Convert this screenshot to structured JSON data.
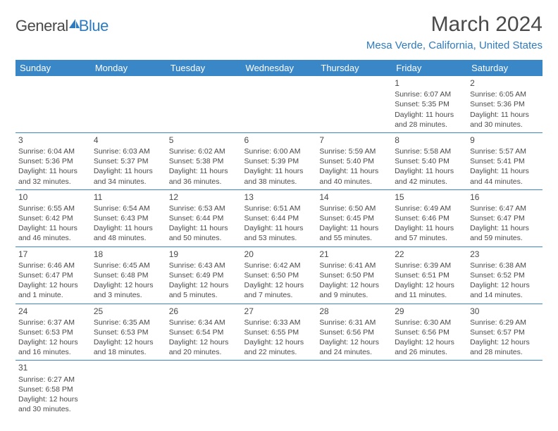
{
  "logo": {
    "general": "General",
    "blue": "Blue"
  },
  "header": {
    "title": "March 2024",
    "location": "Mesa Verde, California, United States"
  },
  "colors": {
    "headerBg": "#3a87c8",
    "headerText": "#ffffff",
    "accent": "#2d7bc0",
    "bodyText": "#4a4a4a",
    "rowBorder": "#3a87c8"
  },
  "weekdays": [
    "Sunday",
    "Monday",
    "Tuesday",
    "Wednesday",
    "Thursday",
    "Friday",
    "Saturday"
  ],
  "days": [
    {
      "n": 1,
      "sunrise": "6:07 AM",
      "sunset": "5:35 PM",
      "daylight": "11 hours and 28 minutes."
    },
    {
      "n": 2,
      "sunrise": "6:05 AM",
      "sunset": "5:36 PM",
      "daylight": "11 hours and 30 minutes."
    },
    {
      "n": 3,
      "sunrise": "6:04 AM",
      "sunset": "5:36 PM",
      "daylight": "11 hours and 32 minutes."
    },
    {
      "n": 4,
      "sunrise": "6:03 AM",
      "sunset": "5:37 PM",
      "daylight": "11 hours and 34 minutes."
    },
    {
      "n": 5,
      "sunrise": "6:02 AM",
      "sunset": "5:38 PM",
      "daylight": "11 hours and 36 minutes."
    },
    {
      "n": 6,
      "sunrise": "6:00 AM",
      "sunset": "5:39 PM",
      "daylight": "11 hours and 38 minutes."
    },
    {
      "n": 7,
      "sunrise": "5:59 AM",
      "sunset": "5:40 PM",
      "daylight": "11 hours and 40 minutes."
    },
    {
      "n": 8,
      "sunrise": "5:58 AM",
      "sunset": "5:40 PM",
      "daylight": "11 hours and 42 minutes."
    },
    {
      "n": 9,
      "sunrise": "5:57 AM",
      "sunset": "5:41 PM",
      "daylight": "11 hours and 44 minutes."
    },
    {
      "n": 10,
      "sunrise": "6:55 AM",
      "sunset": "6:42 PM",
      "daylight": "11 hours and 46 minutes."
    },
    {
      "n": 11,
      "sunrise": "6:54 AM",
      "sunset": "6:43 PM",
      "daylight": "11 hours and 48 minutes."
    },
    {
      "n": 12,
      "sunrise": "6:53 AM",
      "sunset": "6:44 PM",
      "daylight": "11 hours and 50 minutes."
    },
    {
      "n": 13,
      "sunrise": "6:51 AM",
      "sunset": "6:44 PM",
      "daylight": "11 hours and 53 minutes."
    },
    {
      "n": 14,
      "sunrise": "6:50 AM",
      "sunset": "6:45 PM",
      "daylight": "11 hours and 55 minutes."
    },
    {
      "n": 15,
      "sunrise": "6:49 AM",
      "sunset": "6:46 PM",
      "daylight": "11 hours and 57 minutes."
    },
    {
      "n": 16,
      "sunrise": "6:47 AM",
      "sunset": "6:47 PM",
      "daylight": "11 hours and 59 minutes."
    },
    {
      "n": 17,
      "sunrise": "6:46 AM",
      "sunset": "6:47 PM",
      "daylight": "12 hours and 1 minute."
    },
    {
      "n": 18,
      "sunrise": "6:45 AM",
      "sunset": "6:48 PM",
      "daylight": "12 hours and 3 minutes."
    },
    {
      "n": 19,
      "sunrise": "6:43 AM",
      "sunset": "6:49 PM",
      "daylight": "12 hours and 5 minutes."
    },
    {
      "n": 20,
      "sunrise": "6:42 AM",
      "sunset": "6:50 PM",
      "daylight": "12 hours and 7 minutes."
    },
    {
      "n": 21,
      "sunrise": "6:41 AM",
      "sunset": "6:50 PM",
      "daylight": "12 hours and 9 minutes."
    },
    {
      "n": 22,
      "sunrise": "6:39 AM",
      "sunset": "6:51 PM",
      "daylight": "12 hours and 11 minutes."
    },
    {
      "n": 23,
      "sunrise": "6:38 AM",
      "sunset": "6:52 PM",
      "daylight": "12 hours and 14 minutes."
    },
    {
      "n": 24,
      "sunrise": "6:37 AM",
      "sunset": "6:53 PM",
      "daylight": "12 hours and 16 minutes."
    },
    {
      "n": 25,
      "sunrise": "6:35 AM",
      "sunset": "6:53 PM",
      "daylight": "12 hours and 18 minutes."
    },
    {
      "n": 26,
      "sunrise": "6:34 AM",
      "sunset": "6:54 PM",
      "daylight": "12 hours and 20 minutes."
    },
    {
      "n": 27,
      "sunrise": "6:33 AM",
      "sunset": "6:55 PM",
      "daylight": "12 hours and 22 minutes."
    },
    {
      "n": 28,
      "sunrise": "6:31 AM",
      "sunset": "6:56 PM",
      "daylight": "12 hours and 24 minutes."
    },
    {
      "n": 29,
      "sunrise": "6:30 AM",
      "sunset": "6:56 PM",
      "daylight": "12 hours and 26 minutes."
    },
    {
      "n": 30,
      "sunrise": "6:29 AM",
      "sunset": "6:57 PM",
      "daylight": "12 hours and 28 minutes."
    },
    {
      "n": 31,
      "sunrise": "6:27 AM",
      "sunset": "6:58 PM",
      "daylight": "12 hours and 30 minutes."
    }
  ],
  "labels": {
    "sunrise": "Sunrise: ",
    "sunset": "Sunset: ",
    "daylight": "Daylight: "
  },
  "startOffset": 5
}
